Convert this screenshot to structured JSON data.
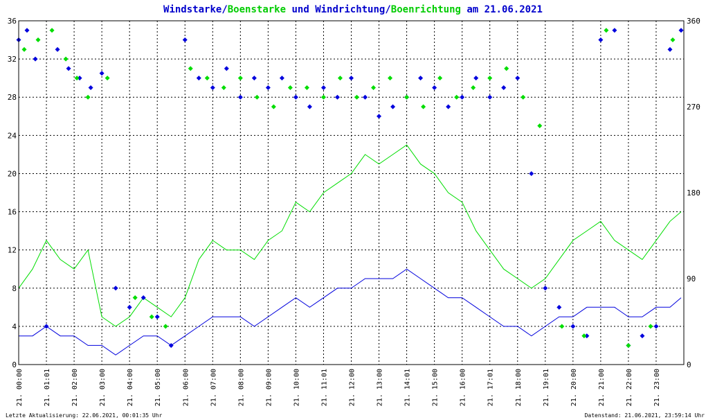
{
  "chart_data": {
    "type": "line",
    "title": {
      "part1": "Windstarke",
      "sep1": "/",
      "part2": "Boenstarke",
      "part3": " und ",
      "part4": "Windrichtung",
      "sep2": "/",
      "part5": "Boenrichtung",
      "part6": " am 21.06.2021"
    },
    "colors": {
      "wind": "#0000dd",
      "gust": "#00dd00",
      "title_wind": "#0000cc",
      "title_gust": "#00cc00",
      "axis": "#000000",
      "grid": "#000000"
    },
    "y_left": {
      "min": 0,
      "max": 36,
      "ticks": [
        "0",
        "4",
        "8",
        "12",
        "16",
        "20",
        "24",
        "28",
        "32",
        "36"
      ]
    },
    "y_right": {
      "min": 0,
      "max": 360,
      "ticks": [
        "0",
        "90",
        "180",
        "270",
        "360"
      ]
    },
    "x_range": [
      0,
      24
    ],
    "x_ticks": [
      {
        "t": 0.0,
        "label": "21. 00:00"
      },
      {
        "t": 1.0,
        "label": "21. 01:01"
      },
      {
        "t": 2.0,
        "label": "21. 02:00"
      },
      {
        "t": 3.0,
        "label": "21. 03:00"
      },
      {
        "t": 4.0,
        "label": "21. 04:00"
      },
      {
        "t": 5.0,
        "label": "21. 05:00"
      },
      {
        "t": 6.0,
        "label": "21. 06:00"
      },
      {
        "t": 7.0,
        "label": "21. 07:00"
      },
      {
        "t": 8.0,
        "label": "21. 08:00"
      },
      {
        "t": 9.0,
        "label": "21. 09:00"
      },
      {
        "t": 10.0,
        "label": "21. 10:00"
      },
      {
        "t": 11.0,
        "label": "21. 11:01"
      },
      {
        "t": 12.0,
        "label": "21. 12:00"
      },
      {
        "t": 13.0,
        "label": "21. 13:00"
      },
      {
        "t": 14.0,
        "label": "21. 14:01"
      },
      {
        "t": 15.0,
        "label": "21. 15:00"
      },
      {
        "t": 16.0,
        "label": "21. 16:00"
      },
      {
        "t": 17.0,
        "label": "21. 17:01"
      },
      {
        "t": 18.0,
        "label": "21. 18:00"
      },
      {
        "t": 19.0,
        "label": "21. 19:01"
      },
      {
        "t": 20.0,
        "label": "21. 20:00"
      },
      {
        "t": 21.0,
        "label": "21. 21:00"
      },
      {
        "t": 22.0,
        "label": "21. 22:00"
      },
      {
        "t": 23.0,
        "label": "21. 23:00"
      }
    ],
    "grid": true,
    "series": [
      {
        "key": "gust_speed",
        "kind": "line",
        "x": [
          0.0,
          0.5,
          1.0,
          1.5,
          2.0,
          2.5,
          3.0,
          3.5,
          4.0,
          4.5,
          5.0,
          5.5,
          6.0,
          6.5,
          7.0,
          7.5,
          8.0,
          8.5,
          9.0,
          9.5,
          10.0,
          10.5,
          11.0,
          11.5,
          12.0,
          12.5,
          13.0,
          13.5,
          14.0,
          14.5,
          15.0,
          15.5,
          16.0,
          16.5,
          17.0,
          17.5,
          18.0,
          18.5,
          19.0,
          19.5,
          20.0,
          20.5,
          21.0,
          21.5,
          22.0,
          22.5,
          23.0,
          23.5,
          23.9
        ],
        "y": [
          8,
          10,
          13,
          11,
          10,
          12,
          5,
          4,
          5,
          7,
          6,
          5,
          7,
          11,
          13,
          12,
          12,
          11,
          13,
          14,
          17,
          16,
          18,
          19,
          20,
          22,
          21,
          22,
          23,
          21,
          20,
          18,
          17,
          14,
          12,
          10,
          9,
          8,
          9,
          11,
          13,
          14,
          15,
          13,
          12,
          11,
          13,
          15,
          16
        ]
      },
      {
        "key": "wind_speed",
        "kind": "line",
        "x": [
          0.0,
          0.5,
          1.0,
          1.5,
          2.0,
          2.5,
          3.0,
          3.5,
          4.0,
          4.5,
          5.0,
          5.5,
          6.0,
          6.5,
          7.0,
          7.5,
          8.0,
          8.5,
          9.0,
          9.5,
          10.0,
          10.5,
          11.0,
          11.5,
          12.0,
          12.5,
          13.0,
          13.5,
          14.0,
          14.5,
          15.0,
          15.5,
          16.0,
          16.5,
          17.0,
          17.5,
          18.0,
          18.5,
          19.0,
          19.5,
          20.0,
          20.5,
          21.0,
          21.5,
          22.0,
          22.5,
          23.0,
          23.5,
          23.9
        ],
        "y": [
          3,
          3,
          4,
          3,
          3,
          2,
          2,
          1,
          2,
          3,
          3,
          2,
          3,
          4,
          5,
          5,
          5,
          4,
          5,
          6,
          7,
          6,
          7,
          8,
          8,
          9,
          9,
          9,
          10,
          9,
          8,
          7,
          7,
          6,
          5,
          4,
          4,
          3,
          4,
          5,
          5,
          6,
          6,
          6,
          5,
          5,
          6,
          6,
          7
        ]
      },
      {
        "key": "wind_direction",
        "kind": "scatter",
        "x": [
          0.0,
          0.3,
          0.6,
          1.0,
          1.4,
          1.8,
          2.2,
          2.6,
          3.0,
          3.5,
          4.0,
          4.5,
          5.0,
          5.5,
          6.0,
          6.5,
          7.0,
          7.5,
          8.0,
          8.5,
          9.0,
          9.5,
          10.0,
          10.5,
          11.0,
          11.5,
          12.0,
          12.5,
          13.0,
          13.5,
          14.0,
          14.5,
          15.0,
          15.5,
          16.0,
          16.5,
          17.0,
          17.5,
          18.0,
          18.5,
          19.0,
          19.5,
          20.0,
          20.5,
          21.0,
          21.5,
          22.0,
          22.5,
          23.0,
          23.5,
          23.9
        ],
        "y": [
          340,
          350,
          320,
          40,
          330,
          310,
          300,
          290,
          305,
          80,
          60,
          70,
          50,
          20,
          340,
          300,
          290,
          310,
          280,
          300,
          290,
          300,
          280,
          270,
          290,
          280,
          300,
          280,
          260,
          270,
          280,
          300,
          290,
          270,
          280,
          300,
          280,
          290,
          300,
          200,
          80,
          60,
          40,
          30,
          340,
          350,
          20,
          30,
          40,
          330,
          350
        ]
      },
      {
        "key": "gust_direction",
        "kind": "scatter",
        "x": [
          0.2,
          0.7,
          1.2,
          1.7,
          2.1,
          2.5,
          3.2,
          4.2,
          4.8,
          5.3,
          6.2,
          6.8,
          7.4,
          8.0,
          8.6,
          9.2,
          9.8,
          10.4,
          11.0,
          11.6,
          12.2,
          12.8,
          13.4,
          14.0,
          14.6,
          15.2,
          15.8,
          16.4,
          17.0,
          17.6,
          18.2,
          18.8,
          19.6,
          20.4,
          21.2,
          22.0,
          22.8,
          23.6
        ],
        "y": [
          330,
          340,
          350,
          320,
          300,
          280,
          300,
          70,
          50,
          40,
          310,
          300,
          290,
          300,
          280,
          270,
          290,
          290,
          280,
          300,
          280,
          290,
          300,
          280,
          270,
          300,
          280,
          290,
          300,
          310,
          280,
          250,
          40,
          30,
          350,
          20,
          40,
          340
        ]
      }
    ],
    "footer_left": "Letzte Aktualisierung: 22.06.2021, 00:01:35 Uhr",
    "footer_right": "Datenstand: 21.06.2021, 23:59:14 Uhr"
  }
}
